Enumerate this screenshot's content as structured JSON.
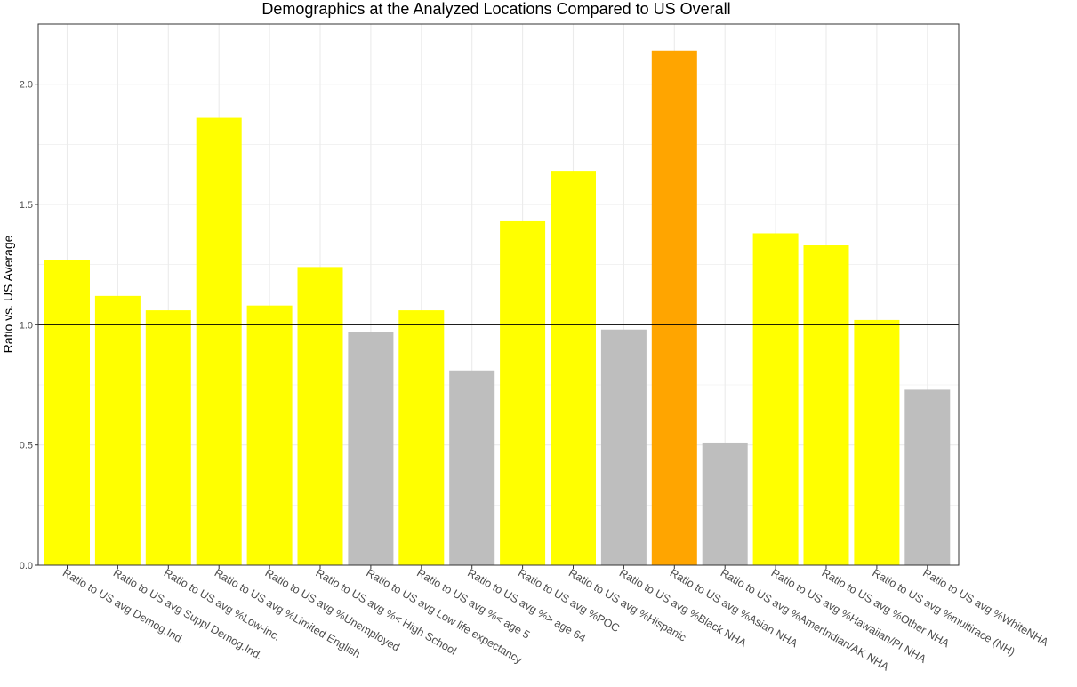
{
  "chart_data": {
    "type": "bar",
    "title": "Demographics at the Analyzed Locations Compared to US Overall",
    "xlabel": "",
    "ylabel": "Ratio vs. US Average",
    "ylim": [
      0,
      2.25
    ],
    "yticks": [
      0.0,
      0.5,
      1.0,
      1.5,
      2.0
    ],
    "ytick_labels": [
      "0.0",
      "0.5",
      "1.0",
      "1.5",
      "2.0"
    ],
    "reference_line": 1.0,
    "grid": true,
    "legend": "none",
    "colors": {
      "above": "#FFFF00",
      "below": "#BEBEBE",
      "highest": "#FFA500",
      "reference": "#000000",
      "grid": "#EBEBEB",
      "panel_border": "#333333"
    },
    "categories": [
      "Ratio to US avg Demog.Ind.",
      "Ratio to US avg Suppl Demog.Ind.",
      "Ratio to US avg %Low-inc.",
      "Ratio to US avg %Limited English",
      "Ratio to US avg %Unemployed",
      "Ratio to US avg %< High School",
      "Ratio to US avg Low life expectancy",
      "Ratio to US avg %< age 5",
      "Ratio to US avg %> age 64",
      "Ratio to US avg %POC",
      "Ratio to US avg %Hispanic",
      "Ratio to US avg %Black NHA",
      "Ratio to US avg %Asian NHA",
      "Ratio to US avg %AmerIndian/AK NHA",
      "Ratio to US avg %Hawaiian/PI NHA",
      "Ratio to US avg %Other NHA",
      "Ratio to US avg %multirace (NH)",
      "Ratio to US avg %WhiteNHA"
    ],
    "values": [
      1.27,
      1.12,
      1.06,
      1.86,
      1.08,
      1.24,
      0.97,
      1.06,
      0.81,
      1.43,
      1.64,
      0.98,
      2.14,
      0.51,
      1.38,
      1.33,
      1.02,
      0.73
    ],
    "bar_colors": [
      "#FFFF00",
      "#FFFF00",
      "#FFFF00",
      "#FFFF00",
      "#FFFF00",
      "#FFFF00",
      "#BEBEBE",
      "#FFFF00",
      "#BEBEBE",
      "#FFFF00",
      "#FFFF00",
      "#BEBEBE",
      "#FFA500",
      "#BEBEBE",
      "#FFFF00",
      "#FFFF00",
      "#FFFF00",
      "#BEBEBE"
    ]
  }
}
